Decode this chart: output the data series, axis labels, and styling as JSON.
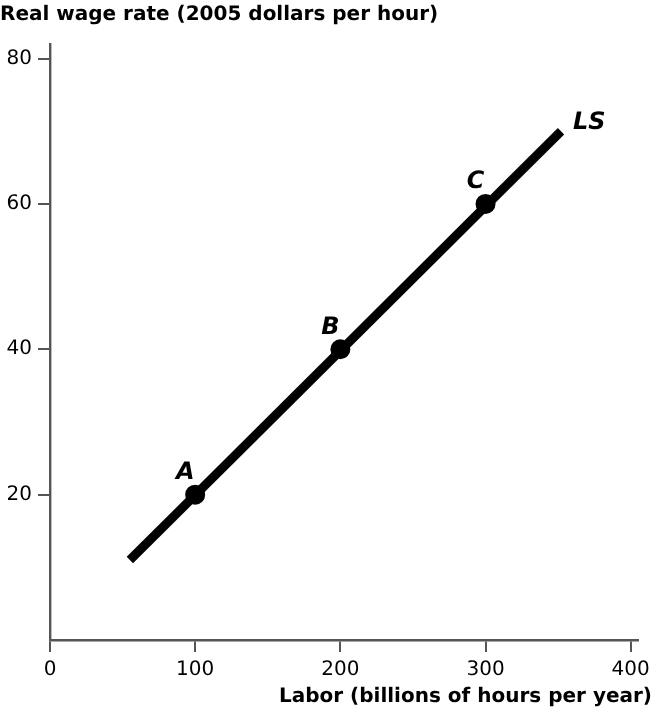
{
  "chart_data": {
    "type": "line",
    "xlabel": "Labor (billions of hours per year)",
    "ylabel": "Real wage rate (2005 dollars per hour)",
    "xlim": [
      0,
      405
    ],
    "ylim": [
      0,
      82
    ],
    "xticks": [
      0,
      100,
      200,
      300,
      400
    ],
    "yticks": [
      20,
      40,
      60,
      80
    ],
    "series": [
      {
        "name": "LS",
        "color": "#000000",
        "marker": "none",
        "line_style": "solid",
        "x": [
          55,
          352
        ],
        "values": [
          11,
          70
        ]
      },
      {
        "type": "scatter",
        "color": "#000000",
        "marker": "circle",
        "x": [
          100,
          200,
          300
        ],
        "values": [
          20,
          40,
          60
        ]
      }
    ],
    "annotations": [
      {
        "text": "A",
        "x": 100,
        "y": 20
      },
      {
        "text": "B",
        "x": 200,
        "y": 40
      },
      {
        "text": "C",
        "x": 300,
        "y": 60
      }
    ]
  }
}
